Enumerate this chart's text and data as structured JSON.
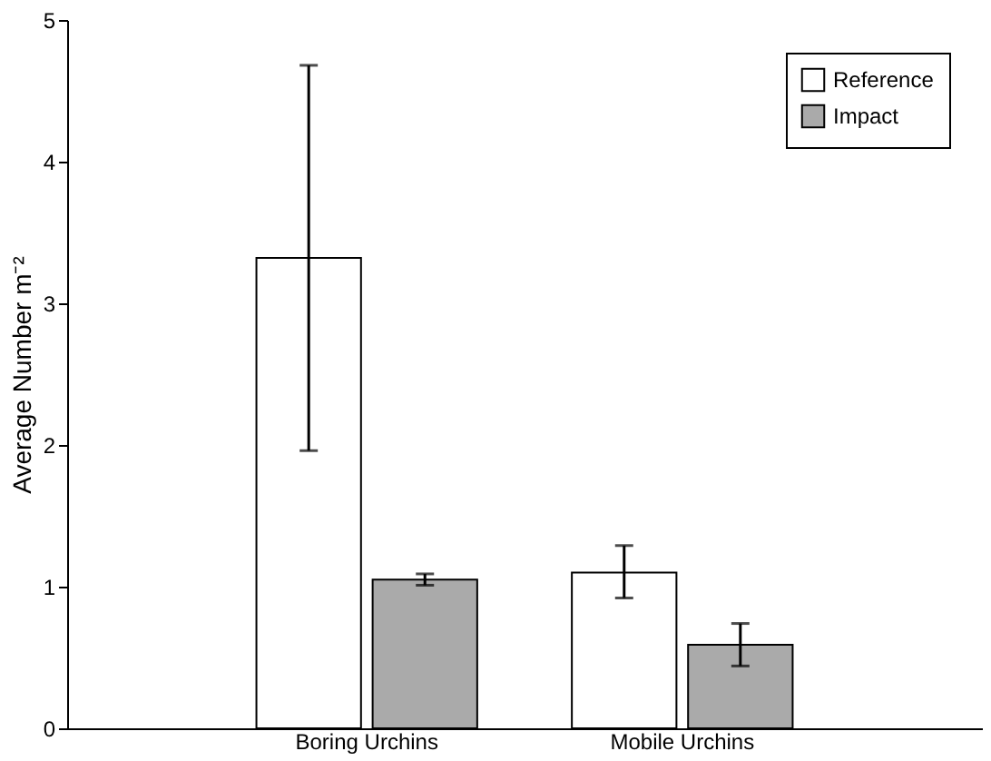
{
  "chart_data": {
    "type": "bar",
    "ylabel": "Average Number m⁻²",
    "categories": [
      "Boring Urchins",
      "Mobile Urchins"
    ],
    "series": [
      {
        "name": "Reference",
        "color": "#ffffff",
        "values": [
          3.32,
          1.1
        ],
        "errors": [
          [
            1.96,
            4.68
          ],
          [
            0.92,
            1.29
          ]
        ]
      },
      {
        "name": "Impact",
        "color": "#aaaaaa",
        "values": [
          1.05,
          0.59
        ],
        "errors": [
          [
            1.01,
            1.09
          ],
          [
            0.44,
            0.74
          ]
        ]
      }
    ],
    "ylim": [
      0,
      5
    ],
    "yticks": [
      0,
      1,
      2,
      3,
      4,
      5
    ],
    "grid": false,
    "legend": "top right"
  }
}
